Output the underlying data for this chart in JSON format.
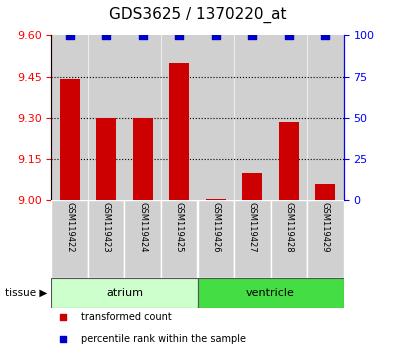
{
  "title": "GDS3625 / 1370220_at",
  "samples": [
    "GSM119422",
    "GSM119423",
    "GSM119424",
    "GSM119425",
    "GSM119426",
    "GSM119427",
    "GSM119428",
    "GSM119429"
  ],
  "bar_values": [
    9.44,
    9.3,
    9.3,
    9.5,
    9.005,
    9.1,
    9.285,
    9.06
  ],
  "percentile_values": [
    100,
    100,
    100,
    100,
    100,
    100,
    100,
    100
  ],
  "ylim_left": [
    9.0,
    9.6
  ],
  "ylim_right": [
    0,
    100
  ],
  "yticks_left": [
    9.0,
    9.15,
    9.3,
    9.45,
    9.6
  ],
  "yticks_right": [
    0,
    25,
    50,
    75,
    100
  ],
  "hlines": [
    9.15,
    9.3,
    9.45
  ],
  "bar_color": "#cc0000",
  "dot_color": "#0000cc",
  "tissue_groups": [
    {
      "label": "atrium",
      "start": 0,
      "end": 4,
      "color": "#ccffcc"
    },
    {
      "label": "ventricle",
      "start": 4,
      "end": 8,
      "color": "#44dd44"
    }
  ],
  "tissue_label": "tissue",
  "legend_items": [
    {
      "label": "transformed count",
      "color": "#cc0000",
      "marker": "s"
    },
    {
      "label": "percentile rank within the sample",
      "color": "#0000cc",
      "marker": "s"
    }
  ],
  "sample_bg_color": "#d0d0d0",
  "bar_width": 0.55,
  "dot_size": 30,
  "dot_marker": "s",
  "title_fontsize": 11,
  "tick_fontsize": 8,
  "label_fontsize": 8
}
